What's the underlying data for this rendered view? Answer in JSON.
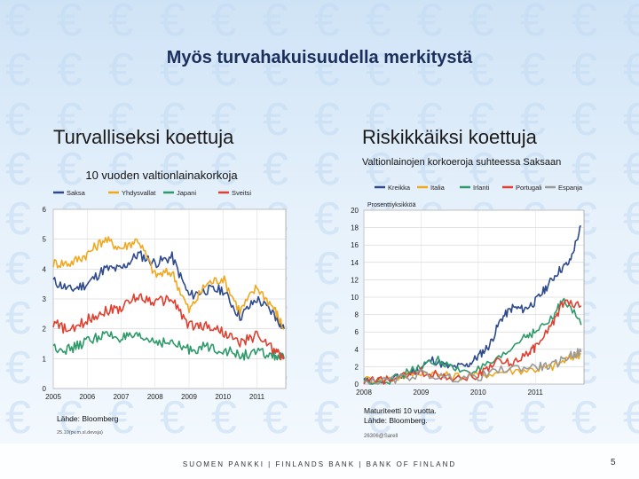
{
  "slide": {
    "title": "Myös turvahakuisuudella merkitystä",
    "left_subtitle": "Turvalliseksi koettuja",
    "right_subtitle": "Riskikkäiksi koettuja",
    "footer": "SUOMEN PANKKI | FINLANDS BANK | BANK OF FINLAND",
    "page_number": "5",
    "background_symbol": "€",
    "colors": {
      "title": "#1c2f5c",
      "background": "#dbeaf8"
    }
  },
  "chart_data": [
    {
      "type": "line",
      "title": "10 vuoden valtionlainakorkoja",
      "source": "Lähde: Bloomberg",
      "note": "25.10(pv.m.sl.devsja)",
      "x_ticks": [
        "2005",
        "2006",
        "2007",
        "2008",
        "2009",
        "2010",
        "2011"
      ],
      "y_ticks": [
        "0",
        "1",
        "2",
        "3",
        "4",
        "5",
        "6"
      ],
      "ylim": [
        0,
        6
      ],
      "xlim": [
        2005,
        2011.85
      ],
      "series": [
        {
          "name": "Saksa",
          "color": "#2e4a8c",
          "x": [
            2005,
            2005.5,
            2006,
            2006.5,
            2007,
            2007.5,
            2008,
            2008.5,
            2009,
            2009.5,
            2010,
            2010.5,
            2011,
            2011.5,
            2011.8
          ],
          "y": [
            3.6,
            3.3,
            3.5,
            4.0,
            4.0,
            4.5,
            4.2,
            4.4,
            3.1,
            3.3,
            3.3,
            2.4,
            3.0,
            2.5,
            2.0
          ]
        },
        {
          "name": "Yhdysvallat",
          "color": "#f0a820",
          "x": [
            2005,
            2005.5,
            2006,
            2006.5,
            2007,
            2007.5,
            2008,
            2008.5,
            2009,
            2009.5,
            2010,
            2010.5,
            2011,
            2011.5,
            2011.8
          ],
          "y": [
            4.2,
            4.2,
            4.5,
            5.0,
            4.7,
            5.0,
            3.8,
            3.9,
            2.6,
            3.5,
            3.7,
            2.6,
            3.4,
            2.7,
            2.0
          ]
        },
        {
          "name": "Japani",
          "color": "#2e9a6a",
          "x": [
            2005,
            2005.5,
            2006,
            2006.5,
            2007,
            2007.5,
            2008,
            2008.5,
            2009,
            2009.5,
            2010,
            2010.5,
            2011,
            2011.5,
            2011.8
          ],
          "y": [
            1.4,
            1.3,
            1.6,
            1.8,
            1.7,
            1.7,
            1.6,
            1.5,
            1.3,
            1.4,
            1.3,
            1.1,
            1.2,
            1.1,
            1.0
          ]
        },
        {
          "name": "Sveitsi",
          "color": "#e04030",
          "x": [
            2005,
            2005.5,
            2006,
            2006.5,
            2007,
            2007.5,
            2008,
            2008.5,
            2009,
            2009.5,
            2010,
            2010.5,
            2011,
            2011.5,
            2011.8
          ],
          "y": [
            2.2,
            1.9,
            2.3,
            2.6,
            2.7,
            3.1,
            2.9,
            3.0,
            2.1,
            2.1,
            1.9,
            1.5,
            1.8,
            1.3,
            1.0
          ]
        }
      ]
    },
    {
      "type": "line",
      "title": "Valtionlainojen korkoeroja suhteessa Saksaan",
      "unit": "Prosenttiyksikköä",
      "source_lines": [
        "Maturiteetti 10 vuotta.",
        "Lähde: Bloomberg."
      ],
      "note": "26306@Sarell",
      "x_ticks": [
        "2008",
        "2009",
        "2010",
        "2011"
      ],
      "y_ticks": [
        "0",
        "2",
        "4",
        "6",
        "8",
        "10",
        "12",
        "14",
        "16",
        "18",
        "20"
      ],
      "ylim": [
        0,
        20
      ],
      "xlim": [
        2008,
        2011.85
      ],
      "series": [
        {
          "name": "Kreikka",
          "color": "#2e4a8c",
          "x": [
            2008,
            2008.5,
            2008.9,
            2009.2,
            2009.5,
            2009.8,
            2010,
            2010.2,
            2010.4,
            2010.6,
            2010.8,
            2011,
            2011.2,
            2011.4,
            2011.6,
            2011.8
          ],
          "y": [
            0.4,
            0.5,
            1.5,
            2.8,
            1.9,
            2.1,
            3.2,
            4.5,
            7.5,
            8.8,
            8.6,
            9.5,
            11.2,
            13.0,
            14.0,
            18.2
          ]
        },
        {
          "name": "Italia",
          "color": "#f0a820",
          "x": [
            2008,
            2008.5,
            2009,
            2009.5,
            2010,
            2010.5,
            2011,
            2011.3,
            2011.6,
            2011.8
          ],
          "y": [
            0.5,
            0.6,
            1.4,
            0.9,
            1.0,
            1.5,
            1.7,
            2.0,
            3.0,
            3.5
          ]
        },
        {
          "name": "Irlanti",
          "color": "#2e9a6a",
          "x": [
            2008,
            2008.5,
            2009,
            2009.3,
            2009.6,
            2010,
            2010.4,
            2010.8,
            2011,
            2011.3,
            2011.5,
            2011.8
          ],
          "y": [
            0.3,
            0.5,
            2.0,
            2.8,
            1.6,
            1.6,
            2.9,
            5.5,
            6.0,
            7.5,
            10.0,
            6.8
          ]
        },
        {
          "name": "Portugali",
          "color": "#e04030",
          "x": [
            2008,
            2008.5,
            2009,
            2009.5,
            2010,
            2010.3,
            2010.6,
            2010.9,
            2011,
            2011.3,
            2011.5,
            2011.8
          ],
          "y": [
            0.3,
            0.5,
            1.4,
            0.8,
            1.0,
            2.6,
            2.4,
            3.8,
            4.2,
            7.0,
            9.5,
            9.0
          ]
        },
        {
          "name": "Espanja",
          "color": "#999999",
          "x": [
            2008,
            2008.5,
            2009,
            2009.5,
            2010,
            2010.5,
            2011,
            2011.3,
            2011.6,
            2011.8
          ],
          "y": [
            0.2,
            0.4,
            1.2,
            0.7,
            0.8,
            1.8,
            2.0,
            2.1,
            3.3,
            3.7
          ]
        }
      ]
    }
  ]
}
